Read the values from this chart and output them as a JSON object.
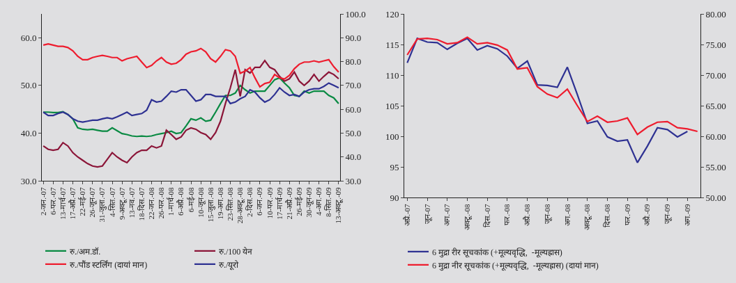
{
  "chart_data": [
    {
      "type": "line",
      "legend": "bottom",
      "grid": false,
      "categories": [
        "2-जन.-07",
        null,
        "6-फर.-07",
        null,
        "13-मार्च-07",
        null,
        "17-अप्रै.-07",
        null,
        "22-मई-07",
        null,
        "26-जून-07",
        null,
        "31-जुला.-07",
        null,
        "4-सित.-07",
        null,
        "9-अक्टू.-07",
        null,
        "13-नव.-07",
        null,
        "18-दिस.-07",
        null,
        "22-जन.-08",
        null,
        "26-फर.-08",
        null,
        "1-मार्च-08",
        null,
        "6-अप्रै.-08",
        null,
        "6-मई-08",
        null,
        "10-जून-08",
        null,
        "15-जुला.-08",
        null,
        "19-अग.-08",
        null,
        "23-सित.-08",
        null,
        "28-अक्टू.-08",
        null,
        "2-दिस.-08",
        null,
        "6-जन.-09",
        null,
        "10-फर.-09",
        null,
        "17-मार्च-09",
        null,
        "21-अप्रै.-09",
        null,
        "26-मई-09",
        null,
        "30-जून-09",
        null,
        "4-अग.-09",
        null,
        "8-सित.-09",
        null,
        "13-अक्टू.-09"
      ],
      "series": [
        {
          "name": "रु./अम.डॉ.",
          "color": "#0a8a43",
          "values": [
            44.4,
            44.4,
            44.3,
            44.3,
            44.5,
            43.9,
            43.0,
            41.1,
            40.8,
            40.7,
            40.8,
            40.6,
            40.4,
            40.4,
            41.1,
            40.5,
            39.9,
            39.7,
            39.4,
            39.3,
            39.4,
            39.3,
            39.4,
            39.7,
            39.9,
            40.1,
            40.4,
            39.9,
            40.1,
            41.5,
            43.0,
            42.7,
            43.2,
            42.5,
            42.7,
            44.4,
            46.2,
            47.9,
            47.9,
            48.4,
            50.0,
            49.1,
            48.4,
            48.8,
            48.8,
            48.8,
            50.0,
            51.2,
            51.6,
            50.5,
            49.5,
            47.9,
            47.7,
            48.8,
            48.4,
            48.8,
            48.8,
            48.8,
            47.9,
            47.4,
            46.2
          ]
        },
        {
          "name": "रु./100 येन",
          "color": "#8b1538",
          "values": [
            37.3,
            36.6,
            36.4,
            36.6,
            38.0,
            37.3,
            35.9,
            35.0,
            34.3,
            33.6,
            33.1,
            32.9,
            33.1,
            34.5,
            35.9,
            35.0,
            34.3,
            33.8,
            35.0,
            35.9,
            36.4,
            36.4,
            37.3,
            36.9,
            37.3,
            40.6,
            39.7,
            38.7,
            39.2,
            40.6,
            41.1,
            40.8,
            40.1,
            39.7,
            38.7,
            40.1,
            42.5,
            46.2,
            49.5,
            53.3,
            47.7,
            53.3,
            52.6,
            53.8,
            53.8,
            55.2,
            53.8,
            53.3,
            51.9,
            50.9,
            51.4,
            52.8,
            50.9,
            50.0,
            50.9,
            52.3,
            50.9,
            51.9,
            52.8,
            52.3,
            51.4
          ]
        },
        {
          "name": "रु./पौंड स्टर्लिंग (दायां मान)",
          "color": "#ee1c2e",
          "axis": "y2",
          "values": [
            86.9,
            87.4,
            86.9,
            86.4,
            86.4,
            85.9,
            84.5,
            82.2,
            80.8,
            80.8,
            81.7,
            82.2,
            82.6,
            82.2,
            81.7,
            81.7,
            80.3,
            81.2,
            81.7,
            82.2,
            79.8,
            77.5,
            78.4,
            80.3,
            81.7,
            79.8,
            78.9,
            79.3,
            80.8,
            83.1,
            84.1,
            84.5,
            85.5,
            84.1,
            81.2,
            79.8,
            82.2,
            85.0,
            84.5,
            82.2,
            75.1,
            76.0,
            77.5,
            73.2,
            69.4,
            70.8,
            71.3,
            74.6,
            73.2,
            72.7,
            74.2,
            77.0,
            78.9,
            79.8,
            79.8,
            80.3,
            79.8,
            80.3,
            80.8,
            77.9,
            75.6
          ]
        },
        {
          "name": "रु./यूरो",
          "color": "#2e3192",
          "values": [
            44.4,
            43.7,
            43.7,
            44.1,
            44.4,
            43.9,
            43.0,
            42.5,
            42.3,
            42.5,
            42.7,
            42.7,
            43.0,
            43.2,
            43.0,
            43.4,
            43.9,
            44.4,
            43.7,
            43.9,
            44.1,
            44.8,
            47.0,
            46.5,
            46.7,
            47.7,
            48.8,
            48.6,
            49.1,
            49.1,
            47.9,
            46.7,
            47.0,
            48.1,
            48.1,
            47.7,
            47.7,
            47.7,
            46.2,
            46.5,
            47.2,
            47.7,
            49.1,
            48.6,
            47.4,
            46.5,
            47.0,
            48.1,
            49.5,
            48.6,
            47.9,
            48.1,
            47.7,
            48.6,
            49.1,
            49.3,
            49.3,
            49.8,
            50.5,
            50.0,
            49.5
          ]
        }
      ],
      "ylim": [
        30,
        65
      ],
      "yticks": [
        {
          "value": 30,
          "label": "30.0"
        },
        {
          "value": 40,
          "label": "40.0"
        },
        {
          "value": 50,
          "label": "50.0"
        },
        {
          "value": 60,
          "label": "60.0"
        }
      ],
      "y2lim": [
        30,
        100
      ],
      "y2ticks": [
        {
          "value": 30,
          "label": "30.0"
        },
        {
          "value": 40,
          "label": "40.0"
        },
        {
          "value": 50,
          "label": "50.0"
        },
        {
          "value": 60,
          "label": "60.0"
        },
        {
          "value": 70,
          "label": "70.0"
        },
        {
          "value": 80,
          "label": "80.0"
        },
        {
          "value": 90,
          "label": "90.0"
        },
        {
          "value": 100,
          "label": "100.0"
        }
      ]
    },
    {
      "type": "line",
      "legend": "bottom",
      "grid": false,
      "categories": [
        "अप्रै.-07",
        null,
        "जून-07",
        null,
        "अग.-07",
        null,
        "अक्टू.-08",
        null,
        "दिस.-07",
        null,
        "फर.-08",
        null,
        "अप्रै.-08",
        null,
        "जून-08",
        null,
        "अग.-08",
        null,
        "अक्टू.-08",
        null,
        "दिस.-08",
        null,
        "फर.-09",
        null,
        "अप्रै.-09",
        null,
        "जून-09",
        null,
        "अग.-09",
        null
      ],
      "series": [
        {
          "name": "6 मुद्रा रीर सूचकांक (+मूल्यवृद्धि,  -मूल्यह्रास)",
          "color": "#2e3192",
          "values": [
            112.0,
            116.0,
            115.4,
            115.3,
            114.2,
            115.2,
            116.0,
            114.1,
            114.8,
            114.3,
            113.1,
            111.1,
            112.3,
            108.4,
            108.3,
            108.0,
            111.3,
            106.8,
            102.1,
            102.5,
            99.9,
            99.2,
            99.4,
            95.7,
            98.4,
            101.4,
            101.1,
            99.9,
            100.8,
            null
          ]
        },
        {
          "name": "6 मुद्रा नीर सूचकांक (+मूल्यवृद्धि,  -मूल्यह्रास) (दायां मान)",
          "color": "#ee1c2e",
          "axis": "y2",
          "values": [
            73.3,
            75.9,
            76.0,
            75.8,
            75.1,
            75.3,
            76.2,
            75.1,
            75.3,
            74.9,
            74.1,
            71.0,
            71.2,
            68.1,
            66.9,
            66.3,
            67.7,
            65.0,
            62.4,
            63.3,
            62.3,
            62.5,
            63.0,
            60.3,
            61.5,
            62.3,
            62.4,
            61.4,
            61.2,
            60.8
          ]
        }
      ],
      "ylim": [
        90,
        120
      ],
      "yticks": [
        90,
        95,
        100,
        105,
        110,
        115,
        120
      ],
      "y2lim": [
        50,
        80
      ],
      "y2ticks": [
        {
          "value": 50,
          "label": "50.00"
        },
        {
          "value": 55,
          "label": "55.00"
        },
        {
          "value": 60,
          "label": "60.00"
        },
        {
          "value": 65,
          "label": "65.00"
        },
        {
          "value": 70,
          "label": "70.00"
        },
        {
          "value": 75,
          "label": "75.00"
        },
        {
          "value": 80,
          "label": "80.00"
        }
      ]
    }
  ]
}
